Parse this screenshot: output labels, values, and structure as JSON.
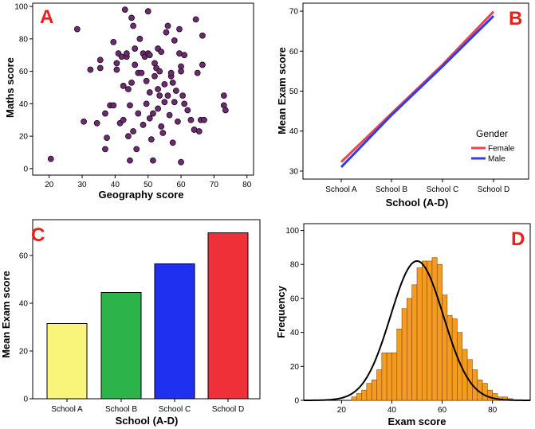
{
  "chart_data": [
    {
      "panel": "A",
      "type": "scatter",
      "xlabel": "Geography score",
      "ylabel": "Maths score",
      "xlim": [
        15,
        82
      ],
      "ylim": [
        -4,
        102
      ],
      "xticks": [
        20,
        30,
        40,
        50,
        60,
        70,
        80
      ],
      "yticks": [
        0,
        20,
        40,
        60,
        80,
        100
      ],
      "marker_color": "#6b2c6e",
      "points": [
        [
          20.5,
          6
        ],
        [
          28.5,
          86
        ],
        [
          30.5,
          29
        ],
        [
          32.5,
          61
        ],
        [
          34.5,
          28
        ],
        [
          35.5,
          67
        ],
        [
          35.5,
          62
        ],
        [
          37,
          34
        ],
        [
          37,
          12
        ],
        [
          37.5,
          19
        ],
        [
          38.5,
          39
        ],
        [
          39.5,
          39
        ],
        [
          39.5,
          78
        ],
        [
          40.5,
          61
        ],
        [
          40.5,
          65
        ],
        [
          41,
          71
        ],
        [
          41.5,
          28
        ],
        [
          42,
          69
        ],
        [
          42.5,
          51
        ],
        [
          42.5,
          30
        ],
        [
          43,
          98
        ],
        [
          43.5,
          69
        ],
        [
          43.5,
          71
        ],
        [
          44,
          49
        ],
        [
          44,
          20
        ],
        [
          44.5,
          5
        ],
        [
          44.5,
          39
        ],
        [
          45,
          53
        ],
        [
          45,
          93
        ],
        [
          45.5,
          88
        ],
        [
          45.5,
          23
        ],
        [
          46,
          74
        ],
        [
          46,
          64
        ],
        [
          46.5,
          12
        ],
        [
          47,
          59
        ],
        [
          47,
          34
        ],
        [
          47.5,
          80
        ],
        [
          48,
          59
        ],
        [
          48.5,
          71
        ],
        [
          48.5,
          27
        ],
        [
          49,
          69
        ],
        [
          49.5,
          40
        ],
        [
          49.5,
          54
        ],
        [
          50,
          97
        ],
        [
          50,
          71
        ],
        [
          50.5,
          70
        ],
        [
          50.5,
          47
        ],
        [
          50.5,
          31
        ],
        [
          51,
          18
        ],
        [
          51.5,
          5
        ],
        [
          51.5,
          34
        ],
        [
          52,
          65
        ],
        [
          52,
          57
        ],
        [
          52.5,
          62
        ],
        [
          53,
          74
        ],
        [
          53,
          49
        ],
        [
          53,
          37
        ],
        [
          53.5,
          45
        ],
        [
          53.5,
          60
        ],
        [
          54,
          72
        ],
        [
          54,
          26
        ],
        [
          54.5,
          22
        ],
        [
          55,
          52
        ],
        [
          55,
          41
        ],
        [
          55.5,
          84
        ],
        [
          56,
          88
        ],
        [
          56,
          45
        ],
        [
          56.5,
          33
        ],
        [
          57,
          57
        ],
        [
          57,
          59
        ],
        [
          57.5,
          16
        ],
        [
          57.5,
          53
        ],
        [
          58,
          79
        ],
        [
          58,
          41
        ],
        [
          58.5,
          48
        ],
        [
          59,
          29
        ],
        [
          59.5,
          86
        ],
        [
          59.5,
          71
        ],
        [
          60,
          63
        ],
        [
          60,
          60
        ],
        [
          60,
          4
        ],
        [
          60.5,
          45
        ],
        [
          61,
          70
        ],
        [
          61,
          40
        ],
        [
          62,
          36
        ],
        [
          63,
          30
        ],
        [
          64,
          24
        ],
        [
          64.5,
          92
        ],
        [
          65,
          59
        ],
        [
          65.5,
          23
        ],
        [
          66,
          30
        ],
        [
          66.5,
          82
        ],
        [
          66.5,
          64
        ],
        [
          67,
          30
        ],
        [
          73,
          39
        ],
        [
          73,
          45
        ],
        [
          73.5,
          36
        ]
      ]
    },
    {
      "panel": "B",
      "type": "line",
      "xlabel": "School (A-D)",
      "ylabel": "Mean Exam score",
      "categories": [
        "School A",
        "School B",
        "School C",
        "School D"
      ],
      "ylim": [
        28,
        72
      ],
      "yticks": [
        30,
        40,
        50,
        60,
        70
      ],
      "legend_title": "Gender",
      "legend_position": "bottom-right",
      "series": [
        {
          "name": "Female",
          "color": "#e8474f",
          "values": [
            32.3,
            44.4,
            56.6,
            69.9
          ]
        },
        {
          "name": "Male",
          "color": "#2f3ee8",
          "values": [
            31.0,
            44.0,
            56.2,
            68.8
          ]
        }
      ]
    },
    {
      "panel": "C",
      "type": "bar",
      "xlabel": "School (A-D)",
      "ylabel": "Mean Exam score",
      "categories": [
        "School A",
        "School B",
        "School C",
        "School D"
      ],
      "values": [
        31.5,
        44.5,
        56.5,
        69.5
      ],
      "colors": [
        "#f9f47a",
        "#2cb34a",
        "#2030f0",
        "#ef3038"
      ],
      "ylim": [
        0,
        75
      ],
      "yticks": [
        0,
        20,
        40,
        60
      ]
    },
    {
      "panel": "D",
      "type": "histogram",
      "xlabel": "Exam score",
      "ylabel": "Frequency",
      "xlim": [
        5,
        95
      ],
      "ylim": [
        0,
        104
      ],
      "xticks": [
        20,
        40,
        60,
        80
      ],
      "yticks": [
        0,
        20,
        40,
        60,
        80,
        100
      ],
      "bin_start": 24,
      "bin_width": 2,
      "bar_color": "#f49b22",
      "counts": [
        2,
        4,
        6,
        10,
        12,
        18,
        28,
        28,
        28,
        42,
        54,
        60,
        68,
        78,
        82,
        82,
        84,
        80,
        62,
        50,
        48,
        40,
        30,
        24,
        18,
        12,
        10,
        6,
        4,
        2,
        2,
        1
      ],
      "normal_curve": {
        "mean": 50,
        "sd": 10.5,
        "peak": 82,
        "color": "#000000"
      }
    }
  ]
}
